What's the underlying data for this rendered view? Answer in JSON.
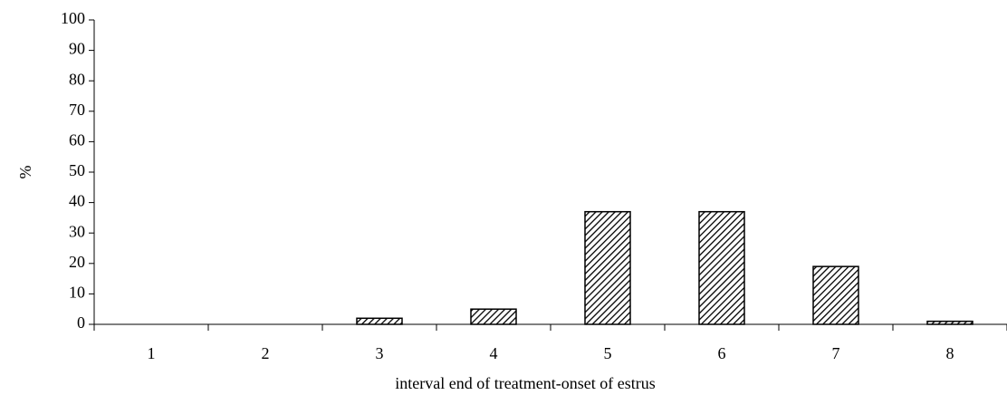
{
  "chart_data": {
    "type": "bar",
    "x_label": "interval end of treatment-onset of estrus",
    "y_label": "%",
    "categories": [
      "1",
      "2",
      "3",
      "4",
      "5",
      "6",
      "7",
      "8"
    ],
    "values": [
      0,
      0,
      2,
      5,
      37,
      37,
      19,
      1
    ],
    "color": "#000000",
    "ylim": [
      0,
      100
    ],
    "yticks": [
      0,
      10,
      20,
      30,
      40,
      50,
      60,
      70,
      80,
      90,
      100
    ],
    "grid": false
  }
}
